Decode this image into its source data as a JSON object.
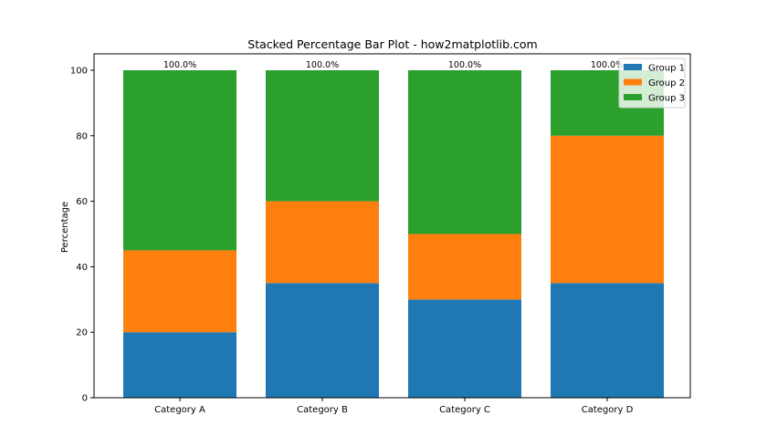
{
  "chart_data": {
    "type": "bar",
    "stacked": true,
    "title": "Stacked Percentage Bar Plot - how2matplotlib.com",
    "xlabel": "",
    "ylabel": "Percentage",
    "ylim": [
      0,
      100
    ],
    "yticks": [
      0,
      20,
      40,
      60,
      80,
      100
    ],
    "categories": [
      "Category A",
      "Category B",
      "Category C",
      "Category D"
    ],
    "series": [
      {
        "name": "Group 1",
        "color": "#1f77b4",
        "values": [
          20,
          35,
          30,
          35
        ]
      },
      {
        "name": "Group 2",
        "color": "#ff7f0e",
        "values": [
          25,
          25,
          20,
          45
        ]
      },
      {
        "name": "Group 3",
        "color": "#2ca02c",
        "values": [
          55,
          40,
          50,
          20
        ]
      }
    ],
    "totals_labels": [
      "100.0%",
      "100.0%",
      "100.0%",
      "100.0%"
    ],
    "legend_position": "top-right",
    "grid": false
  }
}
